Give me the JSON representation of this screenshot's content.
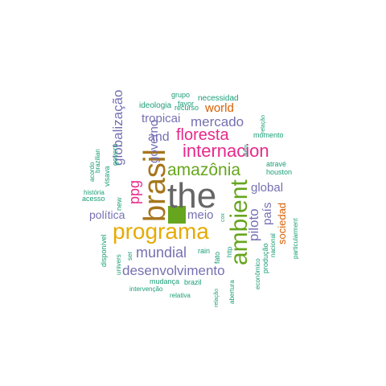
{
  "colors": {
    "green": "#1b9e77",
    "orange": "#d95f02",
    "purple": "#7570b3",
    "magenta": "#e7298a",
    "lime": "#66a61e",
    "gold": "#e6ab02",
    "brown": "#a6761d",
    "gray": "#666666"
  },
  "square_mark_color": "#66a61e",
  "words": [
    {
      "text": "the",
      "color": "#666666"
    },
    {
      "text": "brasil",
      "color": "#a6761d"
    },
    {
      "text": "programa",
      "color": "#e6ab02"
    },
    {
      "text": "ambient",
      "color": "#66a61e"
    },
    {
      "text": "internacion",
      "color": "#e7298a"
    },
    {
      "text": "amazônia",
      "color": "#66a61e"
    },
    {
      "text": "floresta",
      "color": "#e7298a"
    },
    {
      "text": "desenvolvimento",
      "color": "#7570b3"
    },
    {
      "text": "mundial",
      "color": "#7570b3"
    },
    {
      "text": "mercado",
      "color": "#7570b3"
    },
    {
      "text": "piloto",
      "color": "#7570b3"
    },
    {
      "text": "globalização",
      "color": "#7570b3"
    },
    {
      "text": "ppg",
      "color": "#e7298a"
    },
    {
      "text": "governo",
      "color": "#7570b3"
    },
    {
      "text": "global",
      "color": "#7570b3"
    },
    {
      "text": "país",
      "color": "#7570b3"
    },
    {
      "text": "tropicai",
      "color": "#7570b3"
    },
    {
      "text": "and",
      "color": "#7570b3"
    },
    {
      "text": "world",
      "color": "#d95f02"
    },
    {
      "text": "sociedad",
      "color": "#d95f02"
    },
    {
      "text": "política",
      "color": "#7570b3"
    },
    {
      "text": "meio",
      "color": "#7570b3"
    },
    {
      "text": "necessidad",
      "color": "#1b9e77"
    },
    {
      "text": "grupo",
      "color": "#1b9e77"
    },
    {
      "text": "favor",
      "color": "#1b9e77"
    },
    {
      "text": "recurso",
      "color": "#1b9e77"
    },
    {
      "text": "ideologia",
      "color": "#1b9e77"
    },
    {
      "text": "relação",
      "color": "#1b9e77"
    },
    {
      "text": "momento",
      "color": "#1b9e77"
    },
    {
      "text": "além",
      "color": "#1b9e77"
    },
    {
      "text": "atravé",
      "color": "#1b9e77"
    },
    {
      "text": "houston",
      "color": "#1b9e77"
    },
    {
      "text": "acordo",
      "color": "#1b9e77"
    },
    {
      "text": "brazilian",
      "color": "#1b9e77"
    },
    {
      "text": "visava",
      "color": "#1b9e77"
    },
    {
      "text": "govern",
      "color": "#1b9e77"
    },
    {
      "text": "história",
      "color": "#1b9e77"
    },
    {
      "text": "acesso",
      "color": "#1b9e77"
    },
    {
      "text": "new",
      "color": "#1b9e77"
    },
    {
      "text": "cox",
      "color": "#1b9e77"
    },
    {
      "text": "http",
      "color": "#1b9e77"
    },
    {
      "text": "disponível",
      "color": "#1b9e77"
    },
    {
      "text": "univers",
      "color": "#1b9e77"
    },
    {
      "text": "ser",
      "color": "#1b9e77"
    },
    {
      "text": "rain",
      "color": "#1b9e77"
    },
    {
      "text": "fato",
      "color": "#1b9e77"
    },
    {
      "text": "produção",
      "color": "#1b9e77"
    },
    {
      "text": "nacional",
      "color": "#1b9e77"
    },
    {
      "text": "econômico",
      "color": "#1b9e77"
    },
    {
      "text": "particularment",
      "color": "#1b9e77"
    },
    {
      "text": "mudança",
      "color": "#1b9e77"
    },
    {
      "text": "brazil",
      "color": "#1b9e77"
    },
    {
      "text": "intervenção",
      "color": "#1b9e77"
    },
    {
      "text": "relação",
      "color": "#1b9e77"
    },
    {
      "text": "abertura",
      "color": "#1b9e77"
    },
    {
      "text": "relativa",
      "color": "#1b9e77"
    }
  ]
}
